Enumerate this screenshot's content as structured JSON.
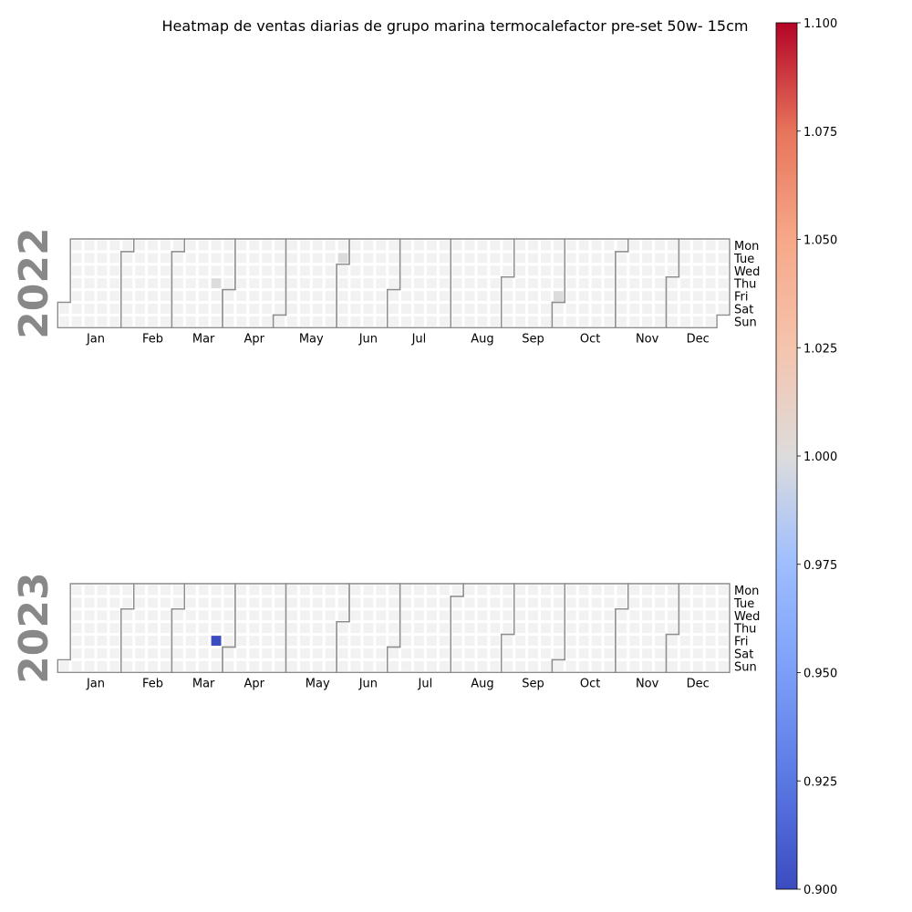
{
  "chart_data": {
    "type": "heatmap",
    "title": "Heatmap de ventas diarias de grupo marina termocalefactor pre-set 50w- 15cm",
    "years": [
      {
        "year": "2022",
        "values": [
          {
            "date": "2022-03-24",
            "value": 1.0
          },
          {
            "date": "2022-05-31",
            "value": 1.0
          },
          {
            "date": "2022-09-30",
            "value": 1.0
          }
        ]
      },
      {
        "year": "2023",
        "values": [
          {
            "date": "2023-03-24",
            "value": 0.9
          }
        ]
      }
    ],
    "month_labels": [
      "Jan",
      "Feb",
      "Mar",
      "Apr",
      "May",
      "Jun",
      "Jul",
      "Aug",
      "Sep",
      "Oct",
      "Nov",
      "Dec"
    ],
    "day_labels": [
      "Mon",
      "Tue",
      "Wed",
      "Thu",
      "Fri",
      "Sat",
      "Sun"
    ],
    "colorbar": {
      "colormap": "coolwarm",
      "vmin": 0.9,
      "vmax": 1.1,
      "ticks": [
        "0.900",
        "0.925",
        "0.950",
        "0.975",
        "1.000",
        "1.025",
        "1.050",
        "1.075",
        "1.100"
      ]
    },
    "colors": {
      "empty_cell": "#f2f2f2",
      "month_border": "#8c8c8c",
      "year_label": "#888888"
    }
  }
}
